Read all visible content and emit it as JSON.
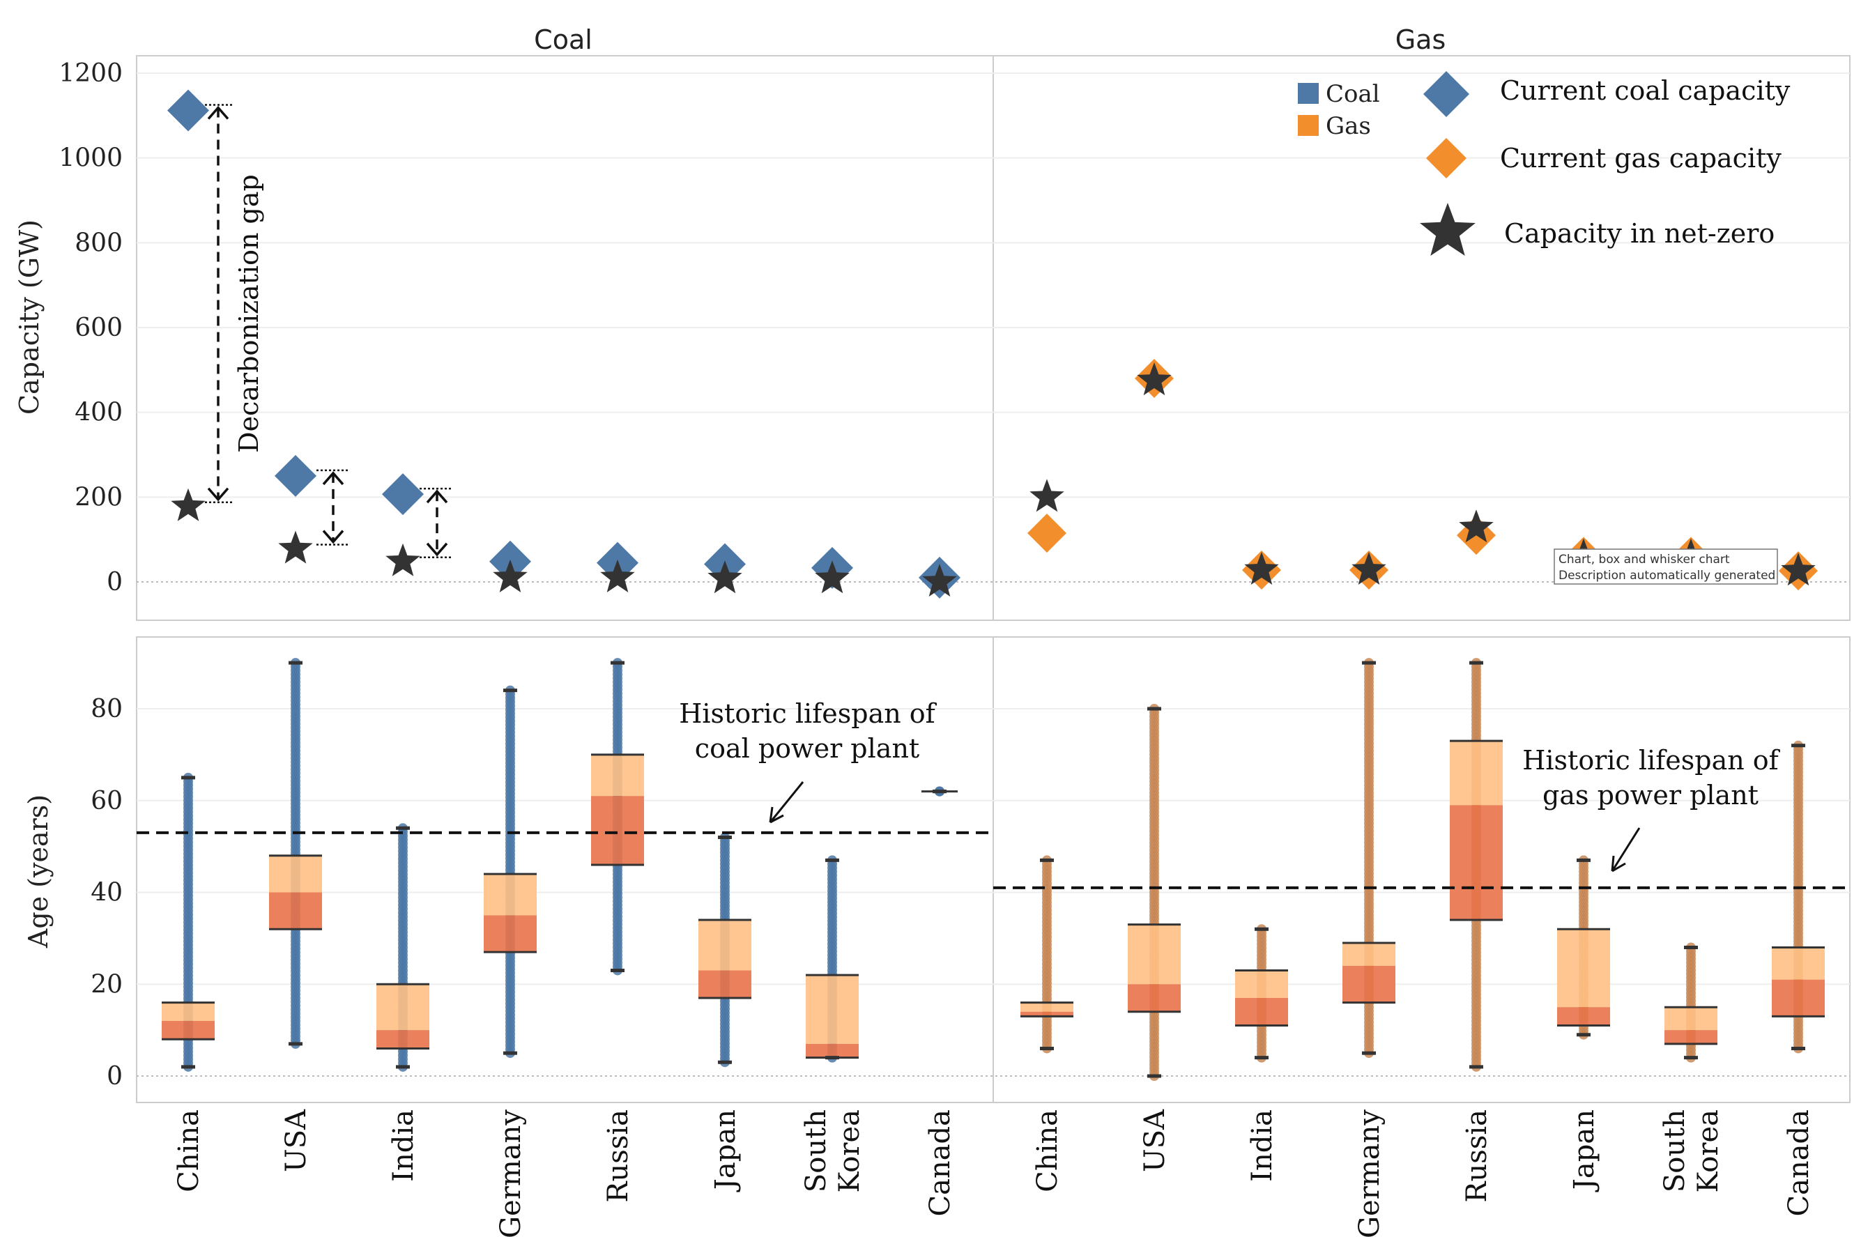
{
  "colors": {
    "coal": "#4e79a7",
    "gas": "#f28e2b",
    "star": "#333333",
    "box_upper": "#ffc085",
    "box_lower": "#e8734a",
    "panel_border": "#d0d0d0"
  },
  "panel_titles": [
    "Coal",
    "Gas"
  ],
  "legend": {
    "coal": "Coal",
    "gas": "Gas",
    "current_coal": "Current coal capacity",
    "current_gas": "Current gas capacity",
    "net_zero": "Capacity in net-zero"
  },
  "annotations": {
    "decarb_gap": "Decarbonization gap",
    "coal_lifespan_line1": "Historic lifespan of",
    "coal_lifespan_line2": "coal power plant",
    "gas_lifespan_line1": "Historic lifespan of",
    "gas_lifespan_line2": "gas power plant",
    "tooltip_line1": "Chart, box and whisker chart",
    "tooltip_line2": "Description automatically generated"
  },
  "chart_data": [
    {
      "type": "scatter",
      "ylabel": "Capacity (GW)",
      "ylim": [
        -80,
        1220
      ],
      "yticks": [
        0,
        200,
        400,
        600,
        800,
        1000,
        1200
      ],
      "categories": [
        "China",
        "USA",
        "India",
        "Germany",
        "Russia",
        "Japan",
        "South Korea",
        "Canada"
      ],
      "coal": {
        "current": [
          1112,
          250,
          207,
          48,
          45,
          42,
          33,
          10
        ],
        "net_zero": [
          178,
          78,
          48,
          10,
          10,
          8,
          8,
          0
        ]
      },
      "gas": {
        "current": [
          115,
          480,
          28,
          28,
          110,
          60,
          60,
          26
        ],
        "net_zero": [
          200,
          475,
          28,
          28,
          128,
          60,
          60,
          26
        ]
      }
    },
    {
      "type": "box",
      "ylabel": "Age (years)",
      "ylim": [
        -6,
        95
      ],
      "yticks": [
        0,
        20,
        40,
        60,
        80
      ],
      "categories": [
        "China",
        "USA",
        "India",
        "Germany",
        "Russia",
        "Japan",
        "South Korea",
        "Canada"
      ],
      "category_lines": [
        [
          "China"
        ],
        [
          "USA"
        ],
        [
          "India"
        ],
        [
          "Germany"
        ],
        [
          "Russia"
        ],
        [
          "Japan"
        ],
        [
          "South",
          "Korea"
        ],
        [
          "Canada"
        ]
      ],
      "coal": {
        "lifespan": 53,
        "boxes": [
          {
            "min": 2,
            "q1": 8,
            "median": 12,
            "q3": 16,
            "max": 65
          },
          {
            "min": 7,
            "q1": 32,
            "median": 40,
            "q3": 48,
            "max": 90
          },
          {
            "min": 2,
            "q1": 6,
            "median": 10,
            "q3": 20,
            "max": 54
          },
          {
            "min": 5,
            "q1": 27,
            "median": 35,
            "q3": 44,
            "max": 84
          },
          {
            "min": 23,
            "q1": 46,
            "median": 61,
            "q3": 70,
            "max": 90
          },
          {
            "min": 3,
            "q1": 17,
            "median": 23,
            "q3": 34,
            "max": 52
          },
          {
            "min": 4,
            "q1": 4,
            "median": 7,
            "q3": 22,
            "max": 47
          },
          {
            "min": 62,
            "q1": 62,
            "median": 62,
            "q3": 62,
            "max": 62
          }
        ]
      },
      "gas": {
        "lifespan": 41,
        "boxes": [
          {
            "min": 6,
            "q1": 13,
            "median": 14,
            "q3": 16,
            "max": 47
          },
          {
            "min": 0,
            "q1": 14,
            "median": 20,
            "q3": 33,
            "max": 80
          },
          {
            "min": 4,
            "q1": 11,
            "median": 17,
            "q3": 23,
            "max": 32
          },
          {
            "min": 5,
            "q1": 16,
            "median": 24,
            "q3": 29,
            "max": 90
          },
          {
            "min": 2,
            "q1": 34,
            "median": 59,
            "q3": 73,
            "max": 90
          },
          {
            "min": 9,
            "q1": 11,
            "median": 15,
            "q3": 32,
            "max": 47
          },
          {
            "min": 4,
            "q1": 7,
            "median": 10,
            "q3": 15,
            "max": 28
          },
          {
            "min": 6,
            "q1": 13,
            "median": 21,
            "q3": 28,
            "max": 72
          }
        ]
      }
    }
  ]
}
